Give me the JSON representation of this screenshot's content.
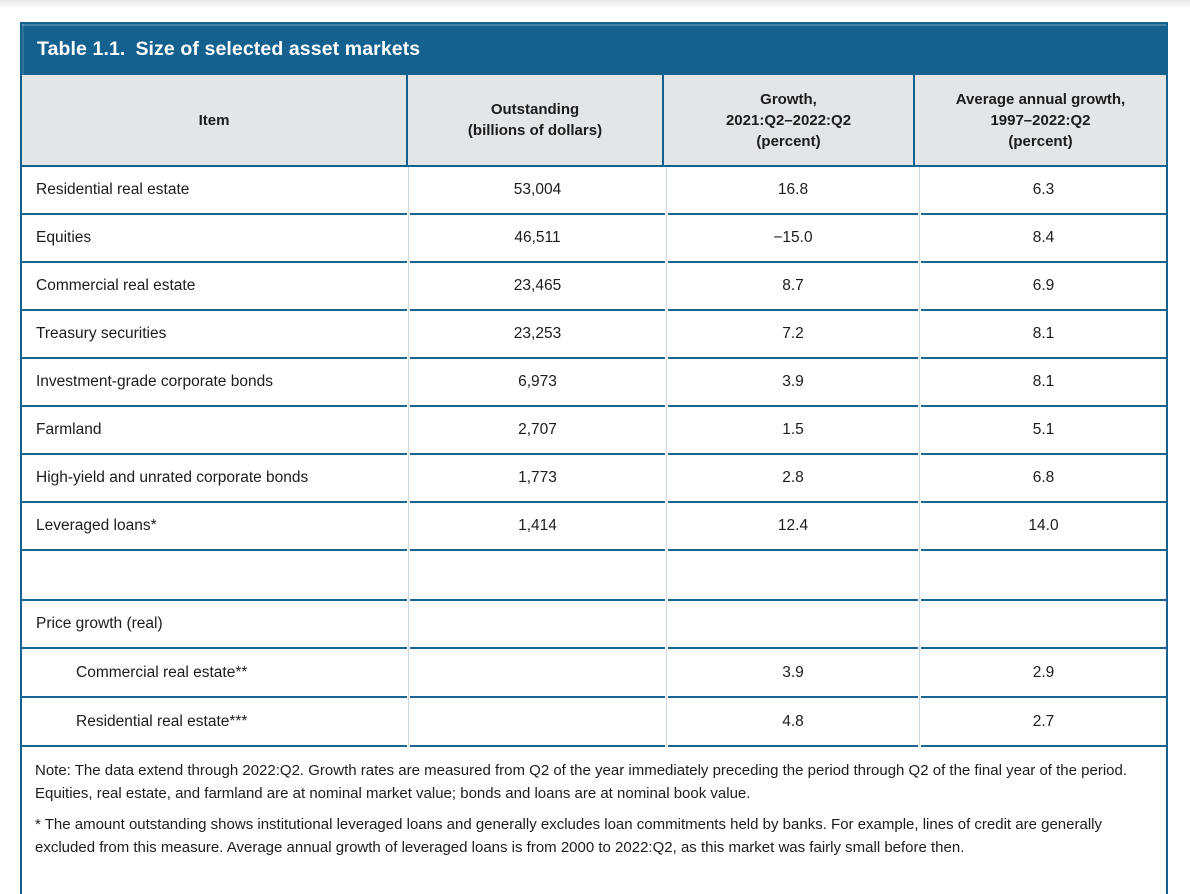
{
  "colors": {
    "accent_blue": "#14618F",
    "row_line_blue": "#1B6594",
    "header_gray": "#E4E5E7",
    "text": "#1C1C1C"
  },
  "table": {
    "title_number": "Table 1.1.",
    "title": "Size of selected asset markets",
    "columns": [
      {
        "key": "item",
        "label": "Item"
      },
      {
        "key": "outstanding",
        "label": "Outstanding\n(billions of dollars)"
      },
      {
        "key": "growth",
        "label": "Growth,\n2021:Q2–2022:Q2\n(percent)"
      },
      {
        "key": "avg_growth",
        "label": "Average annual growth,\n1997–2022:Q2\n(percent)"
      }
    ],
    "rows": [
      {
        "type": "data",
        "item": "Residential real estate",
        "outstanding": "53,004",
        "growth": "16.8",
        "avg_growth": "6.3"
      },
      {
        "type": "data",
        "item": "Equities",
        "outstanding": "46,511",
        "growth": "−15.0",
        "avg_growth": "8.4"
      },
      {
        "type": "data",
        "item": "Commercial real estate",
        "outstanding": "23,465",
        "growth": "8.7",
        "avg_growth": "6.9"
      },
      {
        "type": "data",
        "item": "Treasury securities",
        "outstanding": "23,253",
        "growth": "7.2",
        "avg_growth": "8.1"
      },
      {
        "type": "data",
        "item": "Investment-grade corporate bonds",
        "outstanding": "6,973",
        "growth": "3.9",
        "avg_growth": "8.1"
      },
      {
        "type": "data",
        "item": "Farmland",
        "outstanding": "2,707",
        "growth": "1.5",
        "avg_growth": "5.1"
      },
      {
        "type": "data",
        "item": "High-yield and unrated corporate bonds",
        "outstanding": "1,773",
        "growth": "2.8",
        "avg_growth": "6.8"
      },
      {
        "type": "data",
        "item": "Leveraged loans*",
        "outstanding": "1,414",
        "growth": "12.4",
        "avg_growth": "14.0"
      },
      {
        "type": "empty",
        "item": "",
        "outstanding": "",
        "growth": "",
        "avg_growth": ""
      },
      {
        "type": "section",
        "item": "Price growth (real)",
        "outstanding": "",
        "growth": "",
        "avg_growth": ""
      },
      {
        "type": "sub",
        "item": "Commercial real estate**",
        "outstanding": "",
        "growth": "3.9",
        "avg_growth": "2.9"
      },
      {
        "type": "sub",
        "item": "Residential real estate***",
        "outstanding": "",
        "growth": "4.8",
        "avg_growth": "2.7"
      }
    ]
  },
  "notes": [
    "Note:  The data extend through 2022:Q2. Growth rates are measured from Q2 of the year immediately preceding the period through Q2 of the final year of the period. Equities, real estate, and farmland are at nominal market value; bonds and loans are at nominal book value.",
    "*  The amount outstanding shows institutional leveraged loans and generally excludes loan commitments held by banks. For example, lines of credit are generally excluded from this measure. Average annual growth of leveraged loans is from 2000 to 2022:Q2, as this market was fairly small before then."
  ]
}
